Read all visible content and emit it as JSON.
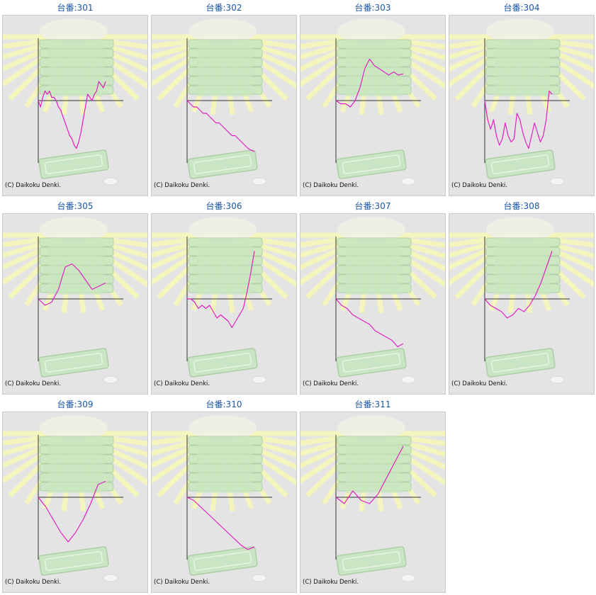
{
  "colors": {
    "title": "#1a56a8",
    "panel_bg": "#e4e4e4",
    "panel_border": "#c9c9c9",
    "line": "#e020c0",
    "axis": "#333333",
    "ray": "#f8f8b4",
    "machine": "#c8e6c0",
    "machine_edge": "#a8cca0"
  },
  "icons": {
    "background": "pachinko-machine-illustration"
  },
  "machines": [
    {
      "label": "台番:301",
      "credit": "(C) Daikoku Denki.",
      "chart_data": {
        "type": "line",
        "ylim": [
          -1,
          1
        ],
        "values": [
          0,
          -0.1,
          0.05,
          0.15,
          0.1,
          0.15,
          0.05,
          0.05,
          0,
          -0.1,
          -0.15,
          -0.25,
          -0.35,
          -0.45,
          -0.55,
          -0.6,
          -0.7,
          -0.75,
          -0.65,
          -0.5,
          -0.3,
          -0.1,
          0.1,
          0.05,
          0,
          0.1,
          0.15,
          0.3,
          0.25,
          0.2,
          0.3
        ]
      }
    },
    {
      "label": "台番:302",
      "credit": "(C) Daikoku Denki.",
      "chart_data": {
        "type": "line",
        "ylim": [
          -1,
          1
        ],
        "values": [
          0,
          -0.05,
          -0.1,
          -0.1,
          -0.15,
          -0.2,
          -0.2,
          -0.25,
          -0.3,
          -0.35,
          -0.35,
          -0.4,
          -0.45,
          -0.5,
          -0.55,
          -0.55,
          -0.6,
          -0.65,
          -0.7,
          -0.75,
          -0.78,
          -0.8
        ]
      }
    },
    {
      "label": "台番:303",
      "credit": "(C) Daikoku Denki.",
      "chart_data": {
        "type": "line",
        "ylim": [
          -1,
          1
        ],
        "values": [
          0,
          -0.05,
          -0.05,
          -0.1,
          0,
          0.2,
          0.5,
          0.65,
          0.55,
          0.5,
          0.45,
          0.4,
          0.45,
          0.4,
          0.42
        ]
      }
    },
    {
      "label": "台番:304",
      "credit": "(C) Daikoku Denki.",
      "chart_data": {
        "type": "line",
        "ylim": [
          -1,
          1
        ],
        "values": [
          0,
          -0.3,
          -0.45,
          -0.3,
          -0.55,
          -0.7,
          -0.6,
          -0.35,
          -0.55,
          -0.65,
          -0.6,
          -0.2,
          -0.3,
          -0.5,
          -0.65,
          -0.75,
          -0.55,
          -0.35,
          -0.5,
          -0.65,
          -0.55,
          -0.3,
          0.15,
          0.1
        ]
      }
    },
    {
      "label": "台番:305",
      "credit": "(C) Daikoku Denki.",
      "chart_data": {
        "type": "line",
        "ylim": [
          -1,
          1
        ],
        "values": [
          0,
          -0.1,
          -0.05,
          0.15,
          0.5,
          0.55,
          0.45,
          0.3,
          0.15,
          0.2,
          0.25
        ]
      }
    },
    {
      "label": "台番:306",
      "credit": "(C) Daikoku Denki.",
      "chart_data": {
        "type": "line",
        "ylim": [
          -1,
          1
        ],
        "values": [
          0,
          0,
          -0.05,
          -0.15,
          -0.1,
          -0.15,
          -0.1,
          -0.2,
          -0.3,
          -0.25,
          -0.3,
          -0.35,
          -0.45,
          -0.35,
          -0.25,
          -0.15,
          0.1,
          0.4,
          0.75
        ]
      }
    },
    {
      "label": "台番:307",
      "credit": "(C) Daikoku Denki.",
      "chart_data": {
        "type": "line",
        "ylim": [
          -1,
          1
        ],
        "values": [
          0,
          -0.1,
          -0.15,
          -0.25,
          -0.3,
          -0.35,
          -0.4,
          -0.5,
          -0.55,
          -0.6,
          -0.65,
          -0.75,
          -0.7
        ]
      }
    },
    {
      "label": "台番:308",
      "credit": "(C) Daikoku Denki.",
      "chart_data": {
        "type": "line",
        "ylim": [
          -1,
          1
        ],
        "values": [
          0,
          -0.1,
          -0.15,
          -0.2,
          -0.3,
          -0.25,
          -0.15,
          -0.2,
          -0.1,
          0.05,
          0.25,
          0.5,
          0.75
        ]
      }
    },
    {
      "label": "台番:309",
      "credit": "(C) Daikoku Denki.",
      "chart_data": {
        "type": "line",
        "ylim": [
          -1,
          1
        ],
        "values": [
          0,
          -0.15,
          -0.35,
          -0.55,
          -0.7,
          -0.55,
          -0.35,
          -0.1,
          0.2,
          0.25
        ]
      }
    },
    {
      "label": "台番:310",
      "credit": "(C) Daikoku Denki.",
      "chart_data": {
        "type": "line",
        "ylim": [
          -1,
          1
        ],
        "values": [
          0,
          -0.05,
          -0.15,
          -0.25,
          -0.35,
          -0.45,
          -0.55,
          -0.65,
          -0.75,
          -0.82,
          -0.78
        ]
      }
    },
    {
      "label": "台番:311",
      "credit": "(C) Daikoku Denki.",
      "chart_data": {
        "type": "line",
        "ylim": [
          -1,
          1
        ],
        "values": [
          0,
          -0.1,
          0.1,
          -0.05,
          -0.1,
          0.05,
          0.3,
          0.55,
          0.8
        ]
      }
    }
  ]
}
